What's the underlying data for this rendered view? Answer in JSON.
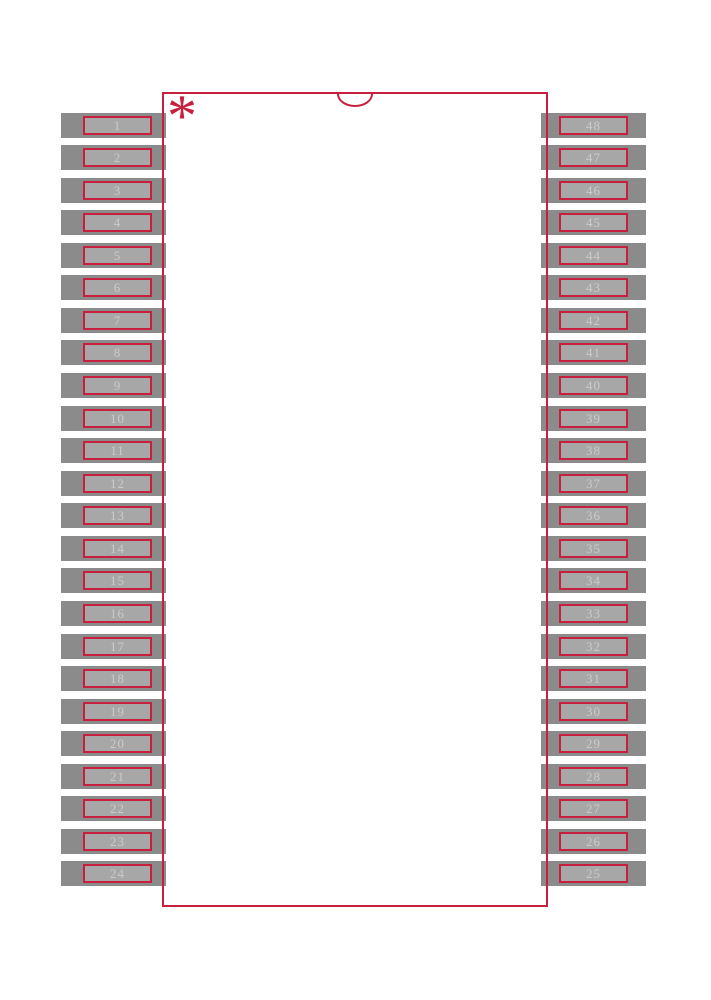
{
  "colors": {
    "accent": "#c7203f",
    "pad": "#8b8b8b",
    "lead_fill": "#a7a7a7",
    "label": "#cbcbcb",
    "background": "#ffffff"
  },
  "package": {
    "pin1_marker": "*"
  },
  "pins": {
    "left": [
      "1",
      "2",
      "3",
      "4",
      "5",
      "6",
      "7",
      "8",
      "9",
      "10",
      "11",
      "12",
      "13",
      "14",
      "15",
      "16",
      "17",
      "18",
      "19",
      "20",
      "21",
      "22",
      "23",
      "24"
    ],
    "right": [
      "48",
      "47",
      "46",
      "45",
      "44",
      "43",
      "42",
      "41",
      "40",
      "39",
      "38",
      "37",
      "36",
      "35",
      "34",
      "33",
      "32",
      "31",
      "30",
      "29",
      "28",
      "27",
      "26",
      "25"
    ]
  }
}
